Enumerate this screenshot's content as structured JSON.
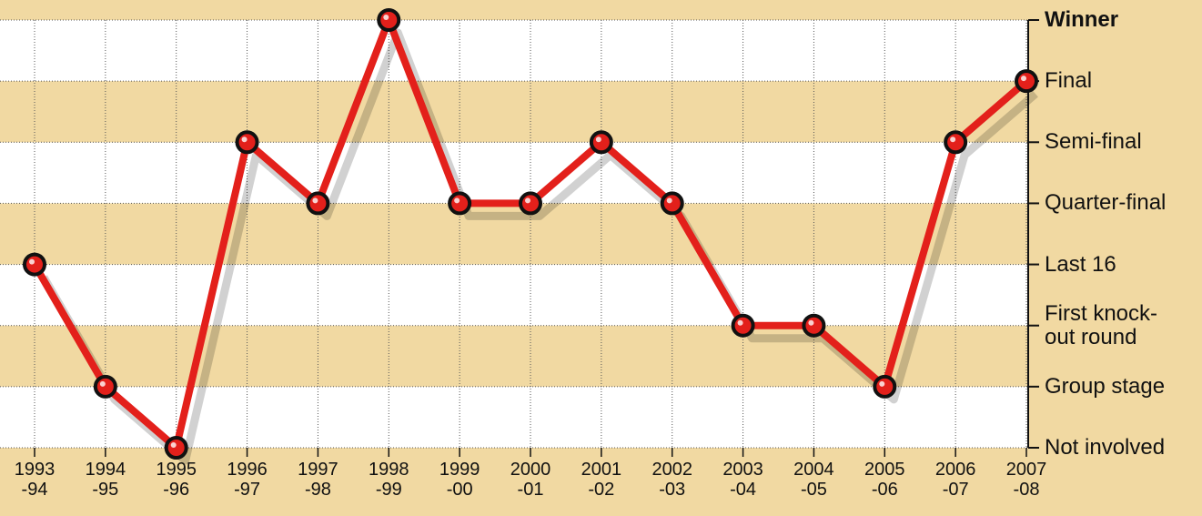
{
  "chart_data": {
    "type": "line",
    "categories": [
      "1993-94",
      "1994-95",
      "1995-96",
      "1996-97",
      "1997-98",
      "1998-99",
      "1999-00",
      "2000-01",
      "2001-02",
      "2002-03",
      "2003-04",
      "2004-05",
      "2005-06",
      "2006-07",
      "2007-08"
    ],
    "values": [
      3,
      1,
      0,
      5,
      4,
      7,
      4,
      4,
      5,
      4,
      2,
      2,
      1,
      5,
      6
    ],
    "color": "#e3201b",
    "ylim": [
      0,
      7
    ],
    "yticks": [
      {
        "value": 0,
        "label": "Not involved"
      },
      {
        "value": 1,
        "label": "Group stage"
      },
      {
        "value": 2,
        "label": "First knock-out round"
      },
      {
        "value": 3,
        "label": "Last 16"
      },
      {
        "value": 4,
        "label": "Quarter-final"
      },
      {
        "value": 5,
        "label": "Semi-final"
      },
      {
        "value": 6,
        "label": "Final"
      },
      {
        "value": 7,
        "label": "Winner"
      }
    ],
    "grid": true
  }
}
